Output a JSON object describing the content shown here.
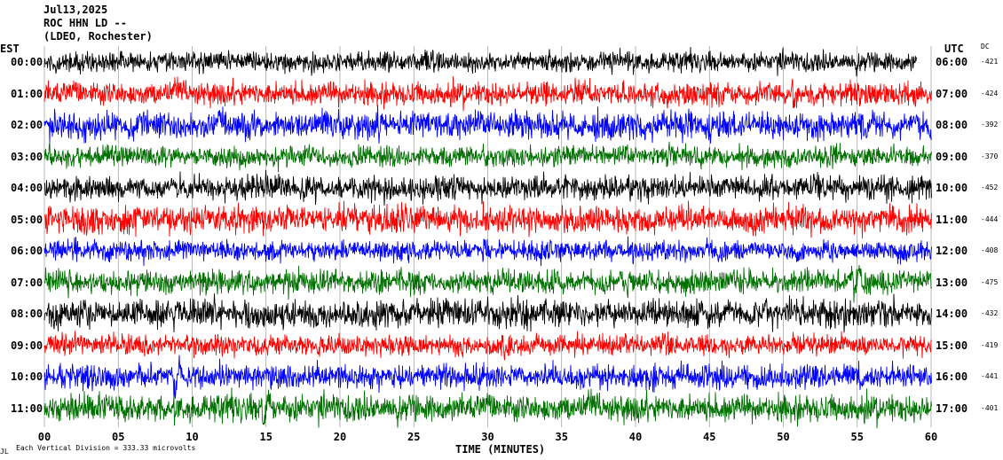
{
  "header": {
    "date": "Jul13,2025",
    "station": "ROC HHN LD --",
    "network": "(LDEO, Rochester)"
  },
  "left_axis_label": "EST",
  "right_axis_label": "UTC",
  "dc_label": "DC",
  "footer_note": "Each Vertical Division = 333.33 microvolts",
  "footer_mark": "JL",
  "chart_data": {
    "type": "line",
    "title": "",
    "xlabel": "TIME (MINUTES)",
    "ylabel": "",
    "xlim": [
      0,
      60
    ],
    "x_ticks": [
      "00",
      "05",
      "10",
      "15",
      "20",
      "25",
      "30",
      "35",
      "40",
      "45",
      "50",
      "55",
      "60"
    ],
    "grid": true,
    "trace_colors": [
      "#000000",
      "#ff0000",
      "#0000ff",
      "#007000"
    ],
    "rows": [
      {
        "est": "00:00",
        "utc": "06:00",
        "dc": "-421"
      },
      {
        "est": "01:00",
        "utc": "07:00",
        "dc": "-424"
      },
      {
        "est": "02:00",
        "utc": "08:00",
        "dc": "-392"
      },
      {
        "est": "03:00",
        "utc": "09:00",
        "dc": "-370"
      },
      {
        "est": "04:00",
        "utc": "10:00",
        "dc": "-452"
      },
      {
        "est": "05:00",
        "utc": "11:00",
        "dc": "-444"
      },
      {
        "est": "06:00",
        "utc": "12:00",
        "dc": "-408"
      },
      {
        "est": "07:00",
        "utc": "13:00",
        "dc": "-475"
      },
      {
        "est": "08:00",
        "utc": "14:00",
        "dc": "-432"
      },
      {
        "est": "09:00",
        "utc": "15:00",
        "dc": "-419"
      },
      {
        "est": "10:00",
        "utc": "16:00",
        "dc": "-441"
      },
      {
        "est": "11:00",
        "utc": "17:00",
        "dc": "-401"
      }
    ],
    "trace_end_minute_first_row": 59,
    "events": [
      {
        "row": 7,
        "minute": 55,
        "note": "spike"
      },
      {
        "row": 10,
        "minute": 9,
        "note": "large signal"
      },
      {
        "row": 11,
        "minute": 15,
        "note": "large signal"
      }
    ]
  }
}
